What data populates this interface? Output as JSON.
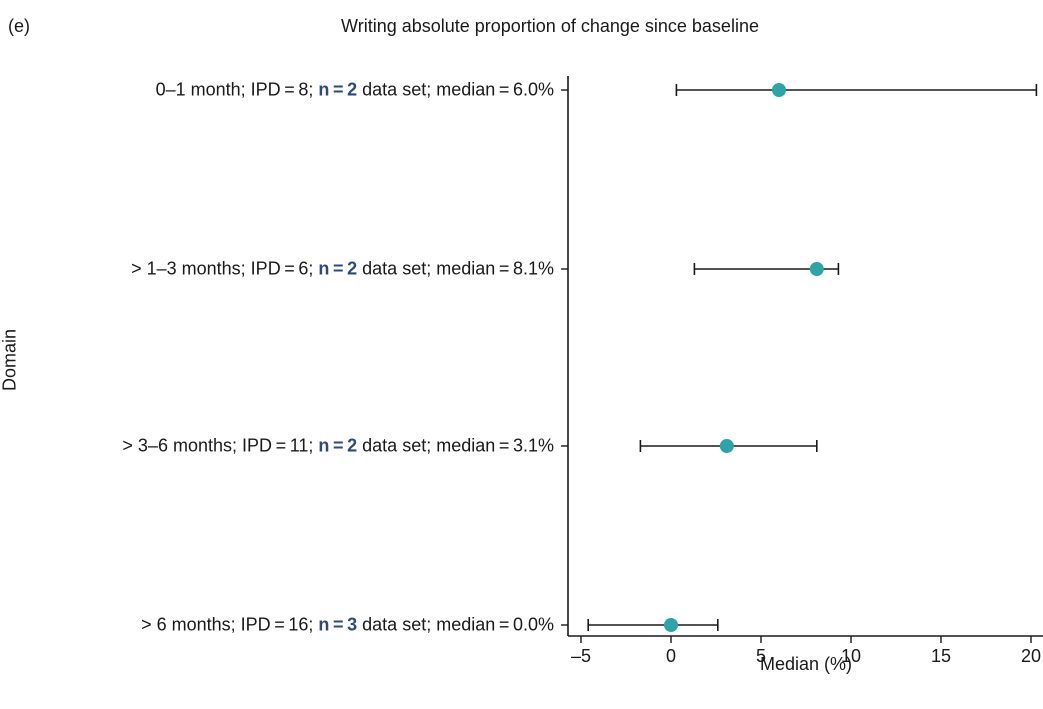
{
  "panel_label": "(e)",
  "chart_data": {
    "type": "forest",
    "title": "Writing absolute proportion of change since baseline",
    "xlabel": "Median (%)",
    "ylabel": "Domain",
    "xlim": [
      -5,
      20
    ],
    "xticks": [
      -5,
      0,
      5,
      10,
      15,
      20
    ],
    "xtick_labels": [
      "–5",
      "0",
      "5",
      "10",
      "15",
      "20"
    ],
    "point_color": "#2ba5aa",
    "n_color": "#2b4a7e",
    "rows": [
      {
        "period": "0–1 month; IPD = 8; ",
        "n_text": "n = 2",
        "suffix": " data set; median = 6.0%",
        "median": 6.0,
        "ci_low": 0.3,
        "ci_high": 20.3
      },
      {
        "period": "> 1–3 months; IPD = 6; ",
        "n_text": "n = 2",
        "suffix": " data set; median = 8.1%",
        "median": 8.1,
        "ci_low": 1.3,
        "ci_high": 9.3
      },
      {
        "period": "> 3–6 months; IPD = 11; ",
        "n_text": "n = 2",
        "suffix": " data set; median = 3.1%",
        "median": 3.1,
        "ci_low": -1.7,
        "ci_high": 8.1
      },
      {
        "period": "> 6 months; IPD = 16; ",
        "n_text": "n = 3",
        "suffix": " data set; median = 0.0%",
        "median": 0.0,
        "ci_low": -4.6,
        "ci_high": 2.6
      }
    ]
  }
}
